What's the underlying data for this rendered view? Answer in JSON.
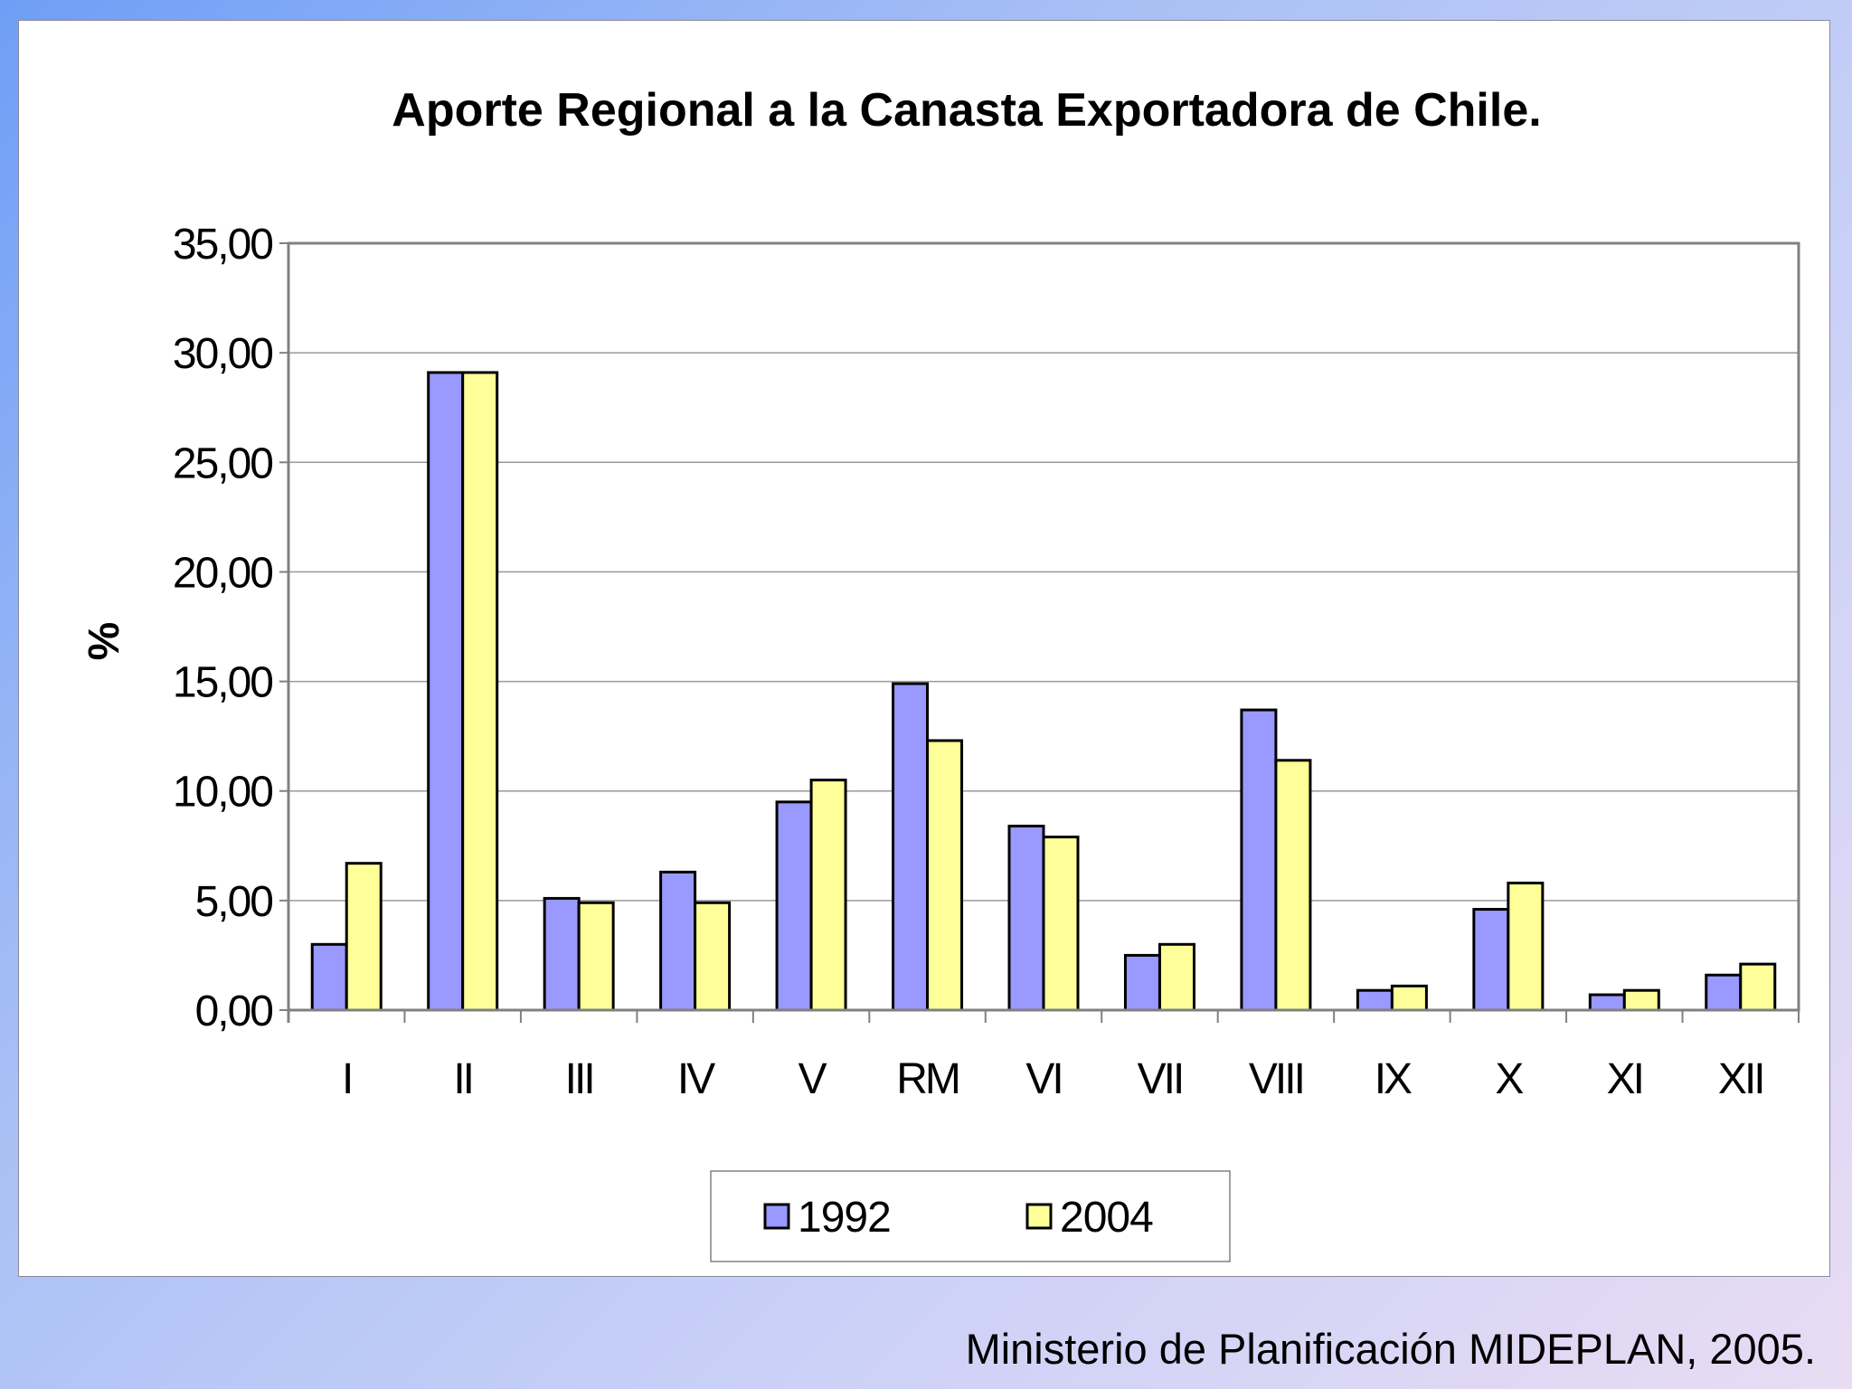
{
  "chart_data": {
    "type": "bar",
    "title": "Aporte Regional a la Canasta Exportadora de Chile.",
    "xlabel": "",
    "ylabel": "%",
    "ylim": [
      0,
      35
    ],
    "yticks": [
      "0,00",
      "5,00",
      "10,00",
      "15,00",
      "20,00",
      "25,00",
      "30,00",
      "35,00"
    ],
    "ytick_values": [
      0,
      5,
      10,
      15,
      20,
      25,
      30,
      35
    ],
    "grid": true,
    "legend_position": "bottom-center",
    "categories": [
      "I",
      "II",
      "III",
      "IV",
      "V",
      "RM",
      "VI",
      "VII",
      "VIII",
      "IX",
      "X",
      "XI",
      "XII"
    ],
    "series": [
      {
        "name": "1992",
        "color": "#9999ff",
        "values": [
          3.0,
          29.1,
          5.1,
          6.3,
          9.5,
          14.9,
          8.4,
          2.5,
          13.7,
          0.9,
          4.6,
          0.7,
          1.6
        ]
      },
      {
        "name": "2004",
        "color": "#ffff99",
        "values": [
          6.7,
          29.1,
          4.9,
          4.9,
          10.5,
          12.3,
          7.9,
          3.0,
          11.4,
          1.1,
          5.8,
          0.9,
          2.1
        ]
      }
    ]
  },
  "footer": {
    "source": "Ministerio de Planificación MIDEPLAN, 2005."
  }
}
